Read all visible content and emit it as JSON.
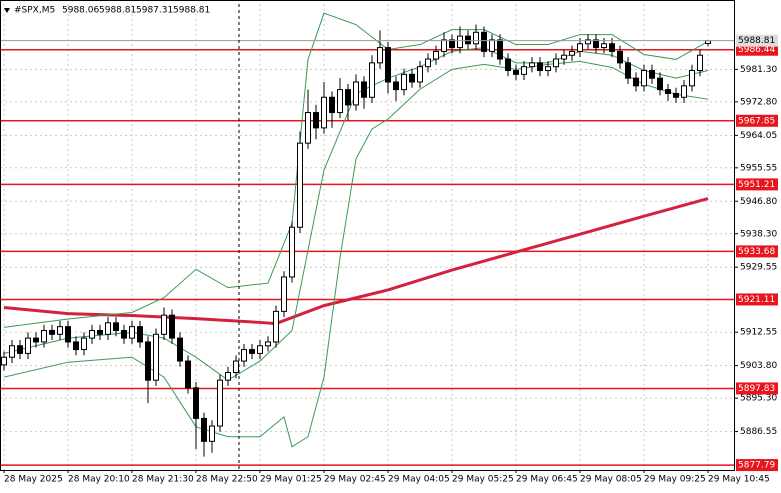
{
  "chart_data": {
    "type": "candlestick",
    "symbol": "#SPX,M5",
    "ylim": [
      5876.5,
      5998.4
    ],
    "yticks": [
      {
        "value": 5981.3,
        "label": "5981.30"
      },
      {
        "value": 5972.8,
        "label": "5972.80"
      },
      5964.05,
      5955.55,
      {
        "value": 5946.8,
        "label": "5946.80"
      },
      {
        "value": 5938.3,
        "label": "5938.30"
      },
      5929.55,
      5912.55,
      {
        "value": 5903.8,
        "label": "5903.80"
      },
      {
        "value": 5895.3,
        "label": "5895.30"
      },
      5886.55
    ],
    "grid": true,
    "categories": [
      "28 May 2025",
      null,
      null,
      null,
      null,
      null,
      null,
      null,
      "28 May 20:10",
      null,
      null,
      null,
      null,
      null,
      null,
      null,
      "28 May 21:30",
      null,
      null,
      null,
      null,
      null,
      null,
      null,
      "28 May 22:50",
      null,
      null,
      null,
      null,
      null,
      null,
      null,
      "29 May 01:25",
      null,
      null,
      null,
      null,
      null,
      null,
      null,
      "29 May 02:45",
      null,
      null,
      null,
      null,
      null,
      null,
      null,
      "29 May 04:05",
      null,
      null,
      null,
      null,
      null,
      null,
      null,
      "29 May 05:25",
      null,
      null,
      null,
      null,
      null,
      null,
      null,
      "29 May 06:45",
      null,
      null,
      null,
      null,
      null,
      null,
      null,
      "29 May 08:05",
      null,
      null,
      null,
      null,
      null,
      null,
      null,
      "29 May 09:25",
      null,
      null,
      null,
      null,
      null,
      null,
      null,
      "29 May 10:45"
    ],
    "open": [
      5904,
      5906,
      5909,
      5907,
      5911,
      5910,
      5913,
      5912,
      5914,
      5910,
      5908,
      5911,
      5913,
      5912,
      5915,
      5913,
      5911,
      5914,
      5910,
      5900,
      5912,
      5917,
      5911,
      5905,
      5898,
      5890,
      5884,
      5888,
      5900,
      5902,
      5905,
      5908,
      5907,
      5909,
      5910,
      5918,
      5927,
      5940,
      5962,
      5970,
      5966,
      5974,
      5970,
      5976,
      5972,
      5978,
      5974,
      5983,
      5987,
      5978,
      5976,
      5980,
      5978,
      5982,
      5984,
      5986,
      5989,
      5987,
      5990,
      5988,
      5991,
      5986,
      5989,
      5984,
      5981,
      5980,
      5982,
      5983,
      5981,
      5982,
      5984,
      5985,
      5986,
      5988,
      5989,
      5987,
      5988,
      5986,
      5983,
      5979,
      5977,
      5981,
      5979,
      5976,
      5975,
      5974,
      5977,
      5981,
      5988.06
    ],
    "high": [
      5907.5,
      5910.5,
      5910.5,
      5912.5,
      5912.5,
      5914.5,
      5914.5,
      5915.5,
      5915.5,
      5911.5,
      5912.5,
      5914.5,
      5914.5,
      5916.5,
      5916.5,
      5914.5,
      5915.5,
      5915.5,
      5911.5,
      5913.5,
      5919,
      5918.5,
      5912.5,
      5906.5,
      5899.5,
      5891.5,
      5889.5,
      5901.5,
      5903.5,
      5906.5,
      5909.5,
      5909.5,
      5910.5,
      5911.5,
      5919.5,
      5928.5,
      5941.5,
      5965,
      5976,
      5972,
      5978,
      5975.5,
      5979,
      5977.5,
      5980,
      5979.5,
      5985,
      5991.5,
      5988.5,
      5979.5,
      5981.5,
      5981.5,
      5983.5,
      5985.5,
      5987.5,
      5991,
      5990.5,
      5992.5,
      5991.5,
      5993,
      5992.5,
      5990.5,
      5990.5,
      5985.5,
      5982.5,
      5983.5,
      5984.5,
      5984.5,
      5983.5,
      5985.5,
      5986.5,
      5987.5,
      5989.5,
      5990.5,
      5990.5,
      5989.5,
      5989.5,
      5987.5,
      5984.5,
      5980.5,
      5982.5,
      5982.5,
      5980.5,
      5977.5,
      5976.5,
      5978.5,
      5982.5,
      5986.5,
      5988.81
    ],
    "low": [
      5902.5,
      5904.5,
      5905.5,
      5905.5,
      5908.5,
      5908.5,
      5910.5,
      5910.5,
      5908.5,
      5906.5,
      5906.5,
      5909.5,
      5910.5,
      5910.5,
      5911.5,
      5909.5,
      5909.5,
      5908.5,
      5894,
      5898.5,
      5910.5,
      5909.5,
      5903.5,
      5896.5,
      5882,
      5880,
      5881,
      5886.5,
      5898.5,
      5900.5,
      5903.5,
      5905.5,
      5905.5,
      5907.5,
      5908.5,
      5916.5,
      5925.5,
      5938.5,
      5960.5,
      5963,
      5964.5,
      5966,
      5968.5,
      5968,
      5970.5,
      5971,
      5972.5,
      5981.5,
      5975,
      5973,
      5974.5,
      5976.5,
      5976.5,
      5980.5,
      5982.5,
      5984.5,
      5985.5,
      5985.5,
      5986.5,
      5986.5,
      5984.5,
      5984.5,
      5982.5,
      5979.5,
      5978.5,
      5978.5,
      5980.5,
      5979.5,
      5979.5,
      5980.5,
      5982.5,
      5983.5,
      5984.5,
      5986.5,
      5985.5,
      5985.5,
      5984.5,
      5981.5,
      5977.5,
      5975.5,
      5975.5,
      5977.5,
      5974.5,
      5973,
      5972.5,
      5972.5,
      5975.5,
      5979.5,
      5987.31
    ],
    "close": [
      5906,
      5909,
      5907,
      5911,
      5910,
      5913,
      5912,
      5914,
      5910,
      5908,
      5911,
      5913,
      5912,
      5915,
      5913,
      5911,
      5914,
      5910,
      5900,
      5912,
      5917,
      5911,
      5905,
      5898,
      5890,
      5884,
      5888,
      5900,
      5902,
      5905,
      5908,
      5907,
      5909,
      5910,
      5918,
      5927,
      5940,
      5962,
      5970,
      5966,
      5974,
      5970,
      5976,
      5972,
      5978,
      5974,
      5983,
      5987,
      5978,
      5976,
      5980,
      5978,
      5982,
      5984,
      5986,
      5989,
      5987,
      5990,
      5988,
      5991,
      5986,
      5989,
      5984,
      5981,
      5980,
      5982,
      5983,
      5981,
      5982,
      5984,
      5985,
      5986,
      5988,
      5989,
      5987,
      5988,
      5986,
      5983,
      5979,
      5977,
      5981,
      5979,
      5976,
      5975,
      5974,
      5977,
      5981,
      5985,
      5988.81
    ],
    "overlays": [
      {
        "color": "#d4213d",
        "x": [
          0,
          8,
          16,
          24,
          32,
          34,
          40,
          48,
          56,
          64,
          72,
          80,
          88
        ],
        "values": [
          5919.0,
          5917.4,
          5916.9,
          5916.1,
          5915.1,
          5914.8,
          5919.5,
          5923.6,
          5928.8,
          5933.5,
          5938.2,
          5942.9,
          5947.5
        ]
      },
      {
        "color": "#3a9a55",
        "x": [
          0,
          8,
          16,
          20,
          24,
          28,
          33,
          36,
          38,
          40,
          44,
          48,
          52,
          56,
          60,
          64,
          68,
          72,
          76,
          80,
          84,
          88
        ],
        "values": [
          5913.8,
          5916.0,
          5917.7,
          5921.6,
          5929.0,
          5924.2,
          5925.4,
          5941.0,
          5983.9,
          5996.0,
          5993.0,
          5986.5,
          5987.8,
          5991.7,
          5991.7,
          5987.8,
          5987.8,
          5990.4,
          5990.4,
          5985.2,
          5983.9,
          5988.6
        ]
      },
      {
        "color": "#3a9a55",
        "x": [
          0,
          8,
          16,
          20,
          24,
          28,
          32,
          36,
          40,
          44,
          48,
          52,
          56,
          60,
          64,
          68,
          72,
          76,
          80,
          84,
          88
        ],
        "values": [
          5907,
          5911,
          5912.5,
          5911,
          5906,
          5900,
          5905,
          5913,
          5955,
          5975,
          5979,
          5982,
          5986,
          5987,
          5983,
          5983,
          5986,
          5985,
          5981,
          5979,
          5981
        ]
      },
      {
        "color": "#3a9a55",
        "x": [
          0,
          8,
          16,
          20,
          24,
          28,
          32,
          35,
          36,
          38,
          40,
          42,
          44,
          46,
          48,
          52,
          56,
          60,
          64,
          68,
          72,
          76,
          80,
          84,
          88
        ],
        "values": [
          5900.8,
          5904.7,
          5906.0,
          5900.8,
          5887.8,
          5885.2,
          5885.2,
          5890.4,
          5882.6,
          5885.2,
          5900.8,
          5932.0,
          5957.9,
          5965.7,
          5968.3,
          5976.1,
          5981.3,
          5982.6,
          5981.3,
          5982.6,
          5983.4,
          5981.8,
          5977.4,
          5974.8,
          5973.5
        ]
      }
    ],
    "levels": [
      5986.44,
      5967.85,
      5951.21,
      5933.68,
      5921.11,
      5897.83,
      5877.79
    ],
    "level_color": "#e8141e"
  }
}
